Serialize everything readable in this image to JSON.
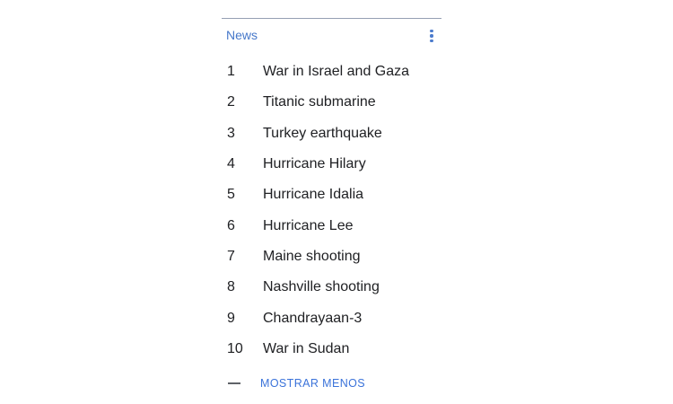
{
  "header": {
    "title": "News",
    "menu_icon": "kebab-menu-icon"
  },
  "list": {
    "items": [
      {
        "rank": "1",
        "label": "War in Israel and Gaza"
      },
      {
        "rank": "2",
        "label": "Titanic submarine"
      },
      {
        "rank": "3",
        "label": "Turkey earthquake"
      },
      {
        "rank": "4",
        "label": "Hurricane Hilary"
      },
      {
        "rank": "5",
        "label": "Hurricane Idalia"
      },
      {
        "rank": "6",
        "label": "Hurricane Lee"
      },
      {
        "rank": "7",
        "label": "Maine shooting"
      },
      {
        "rank": "8",
        "label": "Nashville shooting"
      },
      {
        "rank": "9",
        "label": "Chandrayaan-3"
      },
      {
        "rank": "10",
        "label": "War in Sudan"
      }
    ]
  },
  "footer": {
    "collapse_label": "MOSTRAR MENOS",
    "collapse_icon": "minus-icon"
  },
  "colors": {
    "title_blue": "#4678ca",
    "link_blue": "#3b73da",
    "text": "#202124",
    "divider": "#95a0b3",
    "minus_gray": "#5f6368"
  }
}
